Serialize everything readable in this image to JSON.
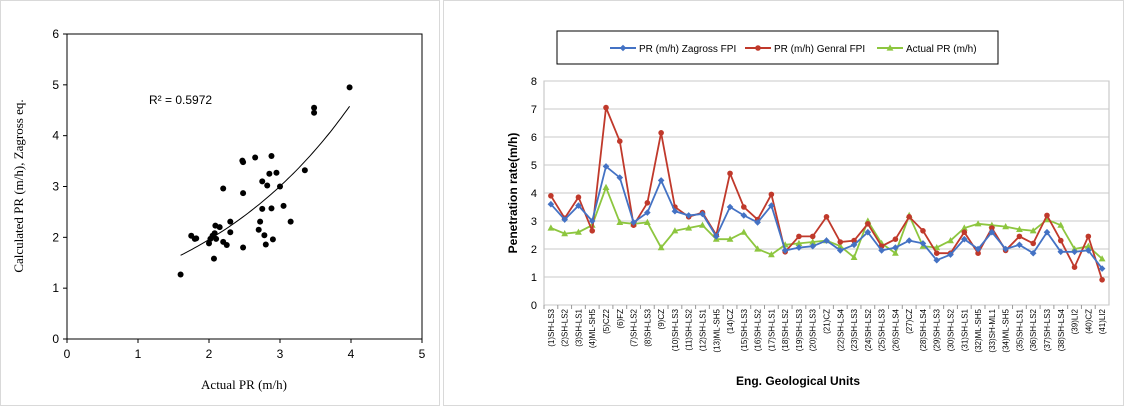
{
  "chart_data": [
    {
      "type": "scatter",
      "xlabel": "Actual PR (m/h)",
      "ylabel": "Calculated PR (m/h), Zagross eq.",
      "annotation": "R² = 0.5972",
      "xlim": [
        0,
        5
      ],
      "ylim": [
        0,
        6
      ],
      "x_ticks": [
        "0",
        "1",
        "2",
        "3",
        "4",
        "5"
      ],
      "y_ticks": [
        "0",
        "1",
        "2",
        "3",
        "4",
        "5",
        "6"
      ],
      "grid": false,
      "trendline": "exponential",
      "points": [
        [
          1.6,
          1.27
        ],
        [
          1.75,
          2.03
        ],
        [
          1.8,
          1.97
        ],
        [
          1.82,
          1.98
        ],
        [
          2.0,
          1.88
        ],
        [
          2.02,
          1.97
        ],
        [
          2.05,
          2.03
        ],
        [
          2.07,
          1.58
        ],
        [
          2.08,
          2.08
        ],
        [
          2.09,
          2.23
        ],
        [
          2.1,
          1.97
        ],
        [
          2.15,
          2.2
        ],
        [
          2.2,
          1.91
        ],
        [
          2.2,
          2.96
        ],
        [
          2.25,
          1.85
        ],
        [
          2.3,
          2.31
        ],
        [
          2.3,
          2.1
        ],
        [
          2.47,
          3.51
        ],
        [
          2.48,
          3.48
        ],
        [
          2.48,
          2.87
        ],
        [
          2.48,
          1.8
        ],
        [
          2.65,
          3.57
        ],
        [
          2.7,
          2.15
        ],
        [
          2.72,
          2.31
        ],
        [
          2.75,
          2.56
        ],
        [
          2.75,
          3.1
        ],
        [
          2.78,
          2.04
        ],
        [
          2.8,
          1.86
        ],
        [
          2.82,
          3.02
        ],
        [
          2.85,
          3.25
        ],
        [
          2.88,
          3.6
        ],
        [
          2.88,
          2.57
        ],
        [
          2.9,
          1.96
        ],
        [
          2.95,
          3.27
        ],
        [
          3.0,
          3.0
        ],
        [
          3.05,
          2.62
        ],
        [
          3.15,
          2.31
        ],
        [
          3.35,
          3.32
        ],
        [
          3.48,
          4.55
        ],
        [
          3.48,
          4.45
        ],
        [
          3.98,
          4.95
        ]
      ]
    },
    {
      "type": "line",
      "xlabel": "Eng. Geological Units",
      "ylabel": "Penetration rate(m/h)",
      "ylim": [
        0,
        8
      ],
      "y_ticks": [
        "0",
        "1",
        "2",
        "3",
        "4",
        "5",
        "6",
        "7",
        "8"
      ],
      "grid": true,
      "legend_position": "top",
      "categories": [
        "(1)SH-LS3",
        "(2)SH-LS2",
        "(3)SH-LS1",
        "(4)ML-SH5",
        "(5)CZ2",
        "(6)FZ",
        "(7)SH-LS2",
        "(8)SH-LS3",
        "(9)CZ",
        "(10)SH-LS3",
        "(11)SH-LS2",
        "(12)SH-LS1",
        "(13)ML-SH5",
        "(14)CZ",
        "(15)SH-LS3",
        "(16)SH-LS2",
        "(17)SH-LS1",
        "(18)SH-LS2",
        "(19)SH-LS3",
        "(20)SH-LS3",
        "(21)CZ",
        "(22)SH-LS4",
        "(23)SH-LS3",
        "(24)SH-LS2",
        "(25)SH-LS3",
        "(26)SH-LS4",
        "(27)CZ",
        "(28)SH-LS4",
        "(29)SH-LS3",
        "(30)SH-LS2",
        "(31)SH-LS1",
        "(32)ML-SH5",
        "(33)SH-ML1",
        "(34)ML-SH5",
        "(35)SH-LS1",
        "(36)SH-LS2",
        "(37)SH-LS3",
        "(38)SH-LS4",
        "(39)LI2",
        "(40)CZ",
        "(41)LI2"
      ],
      "series": [
        {
          "name": "PR (m/h) Zagross FPI",
          "color": "#4472c4",
          "marker": "diamond",
          "values": [
            3.6,
            3.05,
            3.55,
            3.0,
            4.95,
            4.55,
            2.95,
            3.3,
            4.45,
            3.35,
            3.2,
            3.25,
            2.45,
            3.5,
            3.2,
            2.95,
            3.55,
            1.95,
            2.05,
            2.1,
            2.3,
            1.95,
            2.15,
            2.6,
            1.95,
            2.05,
            2.3,
            2.2,
            1.6,
            1.8,
            2.35,
            2.0,
            2.6,
            2.0,
            2.15,
            1.85,
            2.6,
            1.9,
            1.9,
            1.95,
            1.3
          ]
        },
        {
          "name": "PR (m/h) Genral FPI",
          "color": "#c0392b",
          "marker": "circle",
          "values": [
            3.9,
            3.1,
            3.85,
            2.65,
            7.05,
            5.85,
            2.85,
            3.65,
            6.15,
            3.5,
            3.15,
            3.3,
            2.5,
            4.7,
            3.5,
            3.05,
            3.95,
            1.9,
            2.45,
            2.45,
            3.15,
            2.25,
            2.3,
            2.9,
            2.1,
            2.35,
            3.15,
            2.65,
            1.85,
            1.85,
            2.6,
            1.85,
            2.75,
            1.95,
            2.45,
            2.2,
            3.2,
            2.3,
            1.35,
            2.45,
            0.9
          ]
        },
        {
          "name": "Actual PR (m/h)",
          "color": "#8dc63f",
          "marker": "triangle",
          "values": [
            2.75,
            2.55,
            2.6,
            2.85,
            4.2,
            2.95,
            2.9,
            2.95,
            2.05,
            2.65,
            2.75,
            2.85,
            2.35,
            2.35,
            2.6,
            2.0,
            1.8,
            2.15,
            2.2,
            2.25,
            2.3,
            2.1,
            1.7,
            3.0,
            2.2,
            1.85,
            3.2,
            2.1,
            2.05,
            2.3,
            2.75,
            2.9,
            2.85,
            2.8,
            2.7,
            2.65,
            3.05,
            2.85,
            2.0,
            2.1,
            1.65
          ]
        }
      ]
    }
  ]
}
